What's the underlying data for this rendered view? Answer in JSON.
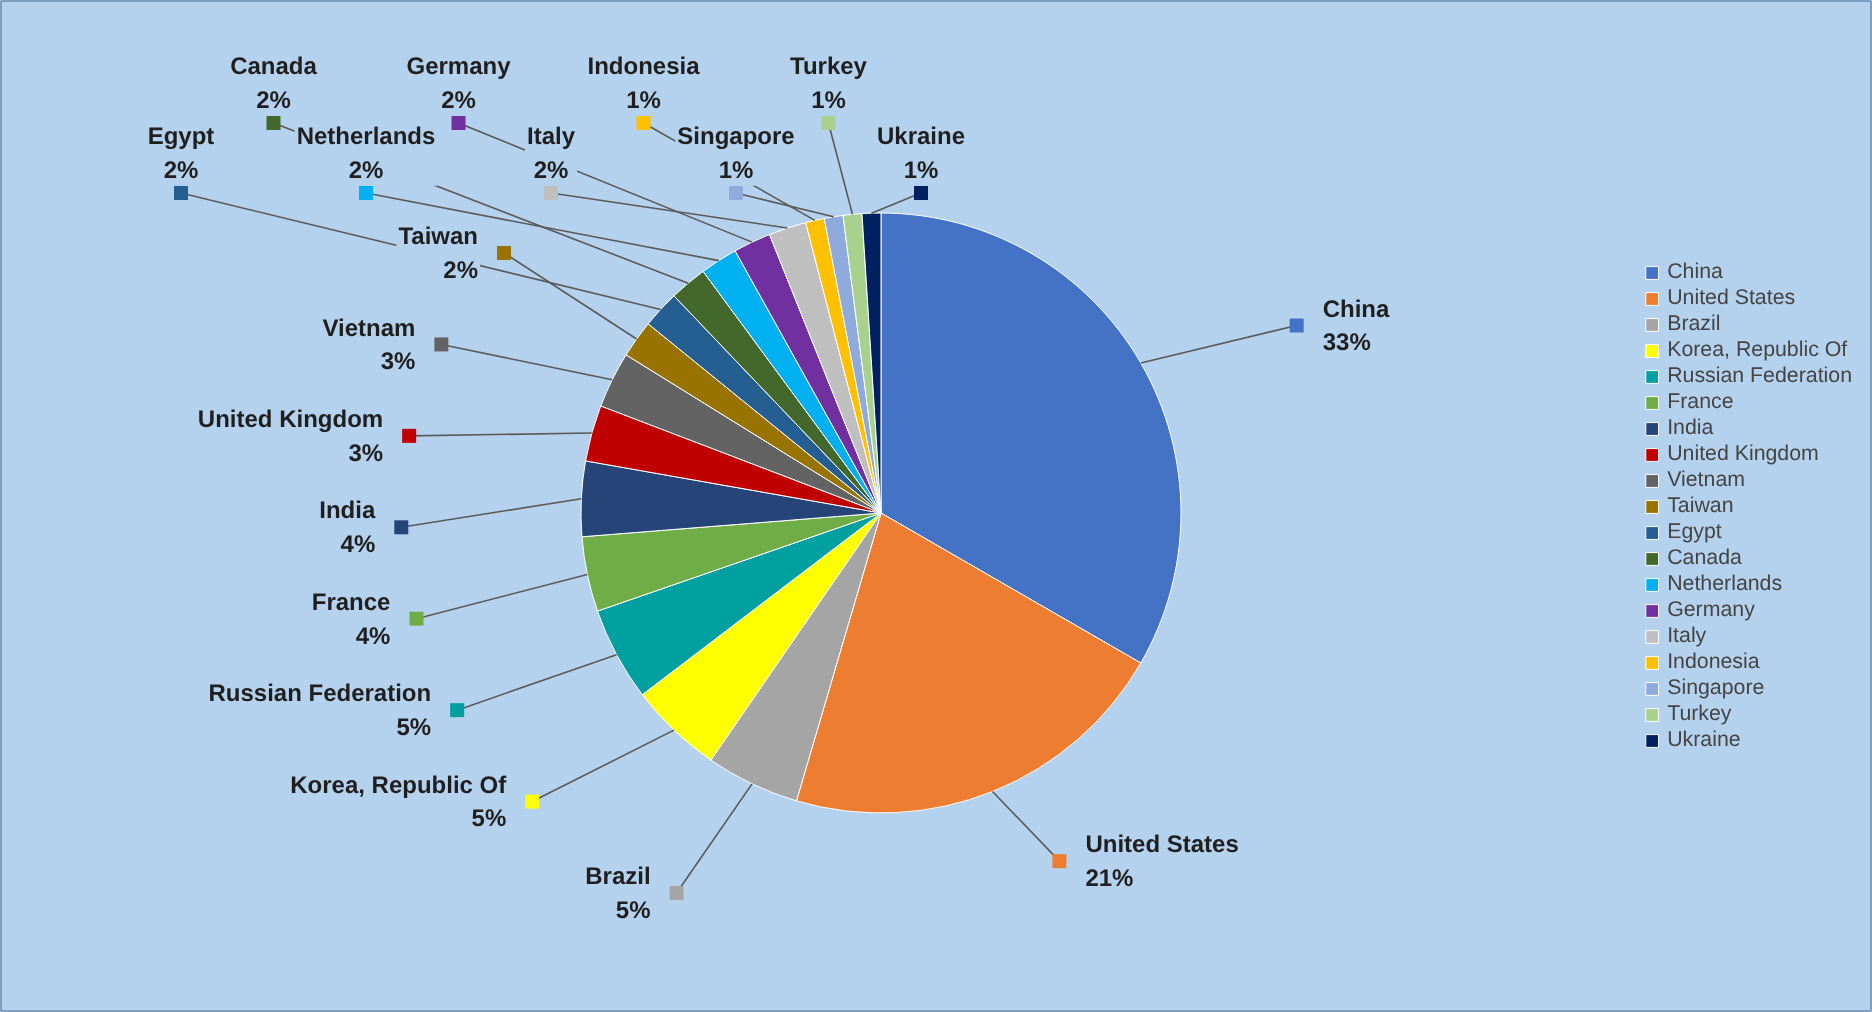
{
  "chart_data": {
    "type": "pie",
    "categories": [
      "China",
      "United States",
      "Brazil",
      "Korea, Republic Of",
      "Russian Federation",
      "France",
      "India",
      "United Kingdom",
      "Vietnam",
      "Taiwan",
      "Egypt",
      "Canada",
      "Netherlands",
      "Germany",
      "Italy",
      "Indonesia",
      "Singapore",
      "Turkey",
      "Ukraine"
    ],
    "values": [
      33,
      21,
      5,
      5,
      5,
      4,
      4,
      3,
      3,
      2,
      2,
      2,
      2,
      2,
      2,
      1,
      1,
      1,
      1
    ],
    "value_labels": [
      "33%",
      "21%",
      "5%",
      "5%",
      "5%",
      "4%",
      "4%",
      "3%",
      "3%",
      "2%",
      "2%",
      "2%",
      "2%",
      "2%",
      "2%",
      "1%",
      "1%",
      "1%",
      "1%"
    ],
    "colors": [
      "#4472c4",
      "#ed7d31",
      "#a5a5a5",
      "#ffff00",
      "#00a0a0",
      "#70ad47",
      "#264478",
      "#c00000",
      "#636363",
      "#997300",
      "#255e91",
      "#43682b",
      "#00b0f0",
      "#7030a0",
      "#bfbfbf",
      "#ffc000",
      "#8faadc",
      "#a9d18e",
      "#002060"
    ],
    "legend": "right"
  }
}
